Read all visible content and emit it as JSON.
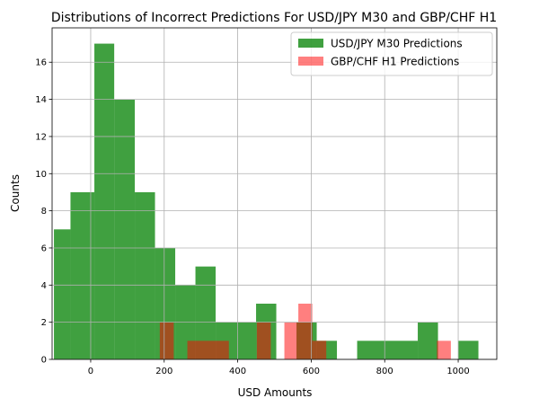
{
  "chart_data": {
    "type": "bar",
    "subtype": "overlapping-histogram",
    "title": "Distributions of Incorrect Predictions For USD/JPY M30 and GBP/CHF H1",
    "xlabel": "USD Amounts",
    "ylabel": "Counts",
    "xlim": [
      -105,
      1105
    ],
    "ylim": [
      0,
      17.85
    ],
    "xticks": [
      0,
      200,
      400,
      600,
      800,
      1000
    ],
    "yticks": [
      0,
      2,
      4,
      6,
      8,
      10,
      12,
      14,
      16
    ],
    "grid": true,
    "legend_position": "top-right",
    "series": [
      {
        "name": "USD/JPY M30 Predictions",
        "color": "#008000",
        "opacity": 0.75,
        "bins": [
          {
            "x0": -100,
            "x1": -55,
            "count": 7
          },
          {
            "x0": -55,
            "x1": 10,
            "count": 9
          },
          {
            "x0": 10,
            "x1": 64,
            "count": 17
          },
          {
            "x0": 64,
            "x1": 120,
            "count": 14
          },
          {
            "x0": 120,
            "x1": 175,
            "count": 9
          },
          {
            "x0": 175,
            "x1": 230,
            "count": 6
          },
          {
            "x0": 230,
            "x1": 285,
            "count": 4
          },
          {
            "x0": 285,
            "x1": 340,
            "count": 5
          },
          {
            "x0": 340,
            "x1": 450,
            "count": 2
          },
          {
            "x0": 450,
            "x1": 505,
            "count": 3
          },
          {
            "x0": 505,
            "x1": 560,
            "count": 0
          },
          {
            "x0": 560,
            "x1": 615,
            "count": 2
          },
          {
            "x0": 615,
            "x1": 670,
            "count": 1
          },
          {
            "x0": 670,
            "x1": 725,
            "count": 0
          },
          {
            "x0": 725,
            "x1": 890,
            "count": 1
          },
          {
            "x0": 890,
            "x1": 945,
            "count": 2
          },
          {
            "x0": 945,
            "x1": 1000,
            "count": 0
          },
          {
            "x0": 1000,
            "x1": 1055,
            "count": 1
          }
        ]
      },
      {
        "name": "GBP/CHF H1 Predictions",
        "color": "#ff0000",
        "opacity": 0.5,
        "bins": [
          {
            "x0": 188,
            "x1": 226,
            "count": 2
          },
          {
            "x0": 263,
            "x1": 376,
            "count": 1
          },
          {
            "x0": 452,
            "x1": 490,
            "count": 2
          },
          {
            "x0": 527,
            "x1": 565,
            "count": 2
          },
          {
            "x0": 565,
            "x1": 603,
            "count": 3
          },
          {
            "x0": 603,
            "x1": 641,
            "count": 1
          },
          {
            "x0": 942,
            "x1": 980,
            "count": 1
          }
        ]
      }
    ]
  }
}
